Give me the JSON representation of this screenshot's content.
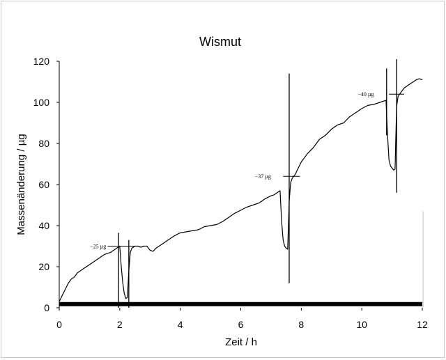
{
  "chart_data": {
    "type": "line",
    "title": "Wismut",
    "xlabel": "Zeit / h",
    "ylabel": "Massenänderung /  µg",
    "xlim": [
      0,
      12
    ],
    "ylim": [
      0,
      120
    ],
    "x_ticks": [
      "0",
      "2",
      "4",
      "6",
      "8",
      "10",
      "12"
    ],
    "y_ticks": [
      "0",
      "20",
      "40",
      "60",
      "80",
      "100",
      "120"
    ],
    "grid": false,
    "legend": "none",
    "line_color": "#000000",
    "series": [
      {
        "x": [
          0.0,
          0.1,
          0.2,
          0.3,
          0.4,
          0.5,
          0.6,
          0.7,
          0.8,
          0.9,
          1.0,
          1.1,
          1.2,
          1.3,
          1.4,
          1.5,
          1.6,
          1.7,
          1.8,
          1.9,
          1.95,
          2.0,
          2.05,
          2.1,
          2.15,
          2.2,
          2.25,
          2.3,
          2.35,
          2.4,
          2.5,
          2.6,
          2.7,
          2.8,
          2.9,
          3.0,
          3.1,
          3.2,
          3.4,
          3.6,
          3.8,
          4.0,
          4.2,
          4.4,
          4.6,
          4.8,
          5.0,
          5.2,
          5.4,
          5.6,
          5.8,
          6.0,
          6.2,
          6.4,
          6.6,
          6.8,
          7.0,
          7.1,
          7.2,
          7.3,
          7.35,
          7.4,
          7.45,
          7.5,
          7.55,
          7.6,
          7.65,
          7.7,
          7.75,
          7.8,
          7.9,
          8.0,
          8.2,
          8.4,
          8.6,
          8.8,
          9.0,
          9.2,
          9.4,
          9.6,
          9.8,
          10.0,
          10.2,
          10.4,
          10.6,
          10.8,
          10.85,
          10.9,
          10.95,
          11.0,
          11.05,
          11.1,
          11.15,
          11.2,
          11.25,
          11.3,
          11.4,
          11.5,
          11.6,
          11.7,
          11.8,
          11.9,
          12.0
        ],
        "y": [
          3,
          6,
          9,
          12,
          14,
          15,
          17,
          18,
          19,
          20,
          21,
          22,
          23,
          24,
          25,
          26,
          26.5,
          27,
          28,
          29,
          29.5,
          30,
          20,
          12,
          7,
          4.5,
          5,
          18,
          27,
          29,
          30,
          30,
          29.5,
          30,
          30,
          28,
          27.5,
          29,
          31,
          33,
          35,
          36.5,
          37,
          37.5,
          38,
          39.5,
          40,
          40.5,
          42,
          44,
          46,
          47.5,
          49,
          50,
          51,
          53,
          54.5,
          55,
          56,
          57,
          42,
          33,
          30,
          29,
          28.5,
          52,
          61,
          63,
          64,
          65,
          68,
          71,
          75,
          78,
          82,
          84,
          87,
          89,
          90,
          93,
          95,
          97,
          98.5,
          99,
          100,
          101,
          84,
          72,
          69,
          68,
          67,
          67.5,
          98,
          103,
          104,
          105,
          107,
          108,
          109,
          110,
          111,
          111.5,
          111
        ]
      }
    ],
    "vertical_markers": [
      {
        "x": 1.96,
        "ymin": 0,
        "ymax": 36.5
      },
      {
        "x": 2.3,
        "ymin": 0,
        "ymax": 33
      },
      {
        "x": 7.6,
        "ymin": 12,
        "ymax": 114
      },
      {
        "x": 10.82,
        "ymin": 84,
        "ymax": 116.5
      },
      {
        "x": 11.15,
        "ymin": 56,
        "ymax": 121
      }
    ],
    "annotations": [
      {
        "text": "−25 µg",
        "x": 1.55,
        "y": 30,
        "seg": [
          1.6,
          2.55
        ]
      },
      {
        "text": "−37 µg",
        "x": 7.0,
        "y": 64,
        "seg": [
          7.4,
          7.95
        ]
      },
      {
        "text": "−40 µg",
        "x": 10.4,
        "y": 104,
        "seg": [
          10.9,
          11.4
        ]
      }
    ],
    "baseline": {
      "y": 1.8,
      "color": "#000000"
    }
  }
}
